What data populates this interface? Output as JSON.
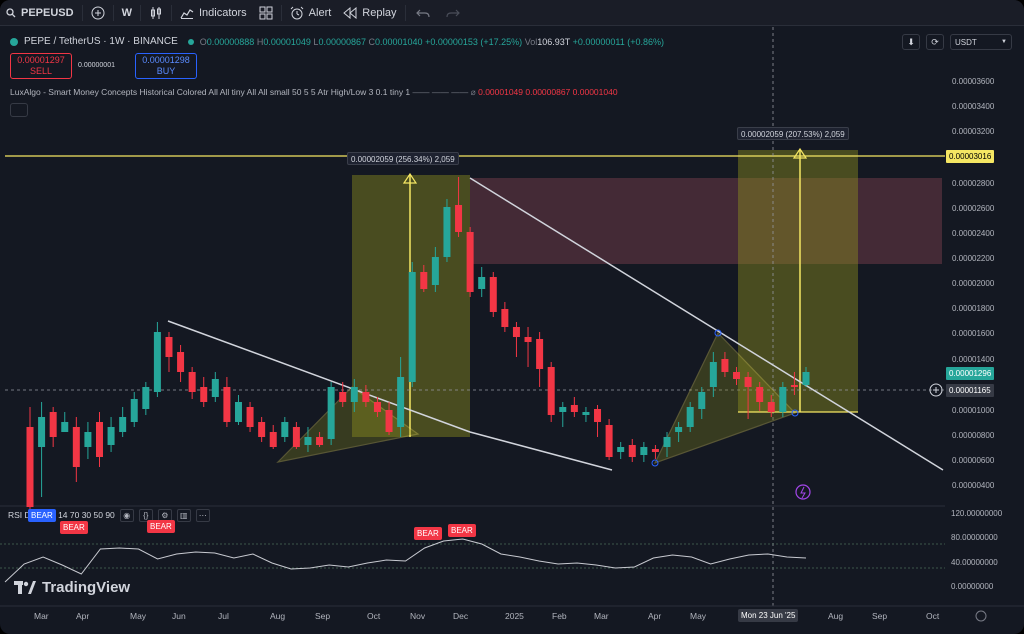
{
  "toolbar": {
    "symbol": "PEPEUSD",
    "interval": "W",
    "indicators_label": "Indicators",
    "alert_label": "Alert",
    "replay_label": "Replay"
  },
  "legend": {
    "title": "PEPE / TetherUS · 1W · BINANCE",
    "open": "0.00000888",
    "high": "0.00001049",
    "low": "0.00000867",
    "close": "0.00001040",
    "change": "+0.00000153 (+17.25%)",
    "vol": "106.93T",
    "vol_change": "+0.00000011 (+0.86%)",
    "sell_price": "0.00001297",
    "sell_label": "SELL",
    "spread": "0.00000001",
    "buy_price": "0.00001298",
    "buy_label": "BUY",
    "indicator": "LuxAlgo - Smart Money Concepts Historical Colored All All tiny All All small 50 5 5 Atr High/Low 3 0.1 tiny 1",
    "indicator_values": "0.00001049  0.00000867  0.00001040",
    "rsi": "RSI Div - Lib 14 70 30 50 90"
  },
  "currency": "USDT",
  "price_axis": [
    "0.00003600",
    "0.00003400",
    "0.00003200",
    "0.00002800",
    "0.00002600",
    "0.00002400",
    "0.00002200",
    "0.00002000",
    "0.00001800",
    "0.00001600",
    "0.00001400",
    "0.00001000",
    "0.00000800",
    "0.00000600",
    "0.00000400"
  ],
  "price_axis_y": [
    55,
    80,
    105,
    157,
    182,
    207,
    232,
    257,
    282,
    307,
    333,
    384,
    409,
    434,
    459
  ],
  "rsi_axis": [
    "120.00000000",
    "80.00000000",
    "40.00000000",
    "0.00000000"
  ],
  "badges": {
    "target": "0.00003016",
    "current": "0.00001296",
    "cursor": "0.00001165"
  },
  "measures": [
    {
      "text": "0.00002059 (256.34%) 2,059"
    },
    {
      "text": "0.00002059 (207.53%) 2,059"
    }
  ],
  "rsi_tags": [
    "BEAR",
    "BEAR",
    "BEAR",
    "BEAR"
  ],
  "time_axis": [
    "Mar",
    "Apr",
    "May",
    "Jun",
    "Jul",
    "Aug",
    "Sep",
    "Oct",
    "Nov",
    "Dec",
    "2025",
    "Feb",
    "Mar",
    "Apr",
    "May",
    "Aug",
    "Sep",
    "Oct"
  ],
  "date_label": "Mon 23 Jun '25",
  "brand": "TradingView",
  "colors": {
    "up": "#26a69a",
    "down": "#f23645",
    "accent": "#f5e663",
    "bg": "#141822"
  },
  "candles": [
    [
      400,
      480,
      380,
      495
    ],
    [
      420,
      390,
      375,
      470
    ],
    [
      385,
      410,
      380,
      420
    ],
    [
      405,
      395,
      385,
      405
    ],
    [
      400,
      440,
      390,
      455
    ],
    [
      420,
      405,
      395,
      432
    ],
    [
      395,
      430,
      385,
      440
    ],
    [
      418,
      400,
      390,
      425
    ],
    [
      405,
      390,
      380,
      410
    ],
    [
      395,
      372,
      365,
      400
    ],
    [
      382,
      360,
      355,
      388
    ],
    [
      365,
      305,
      295,
      370
    ],
    [
      310,
      330,
      305,
      345
    ],
    [
      325,
      345,
      318,
      355
    ],
    [
      345,
      365,
      340,
      372
    ],
    [
      360,
      375,
      350,
      380
    ],
    [
      370,
      352,
      345,
      375
    ],
    [
      360,
      395,
      350,
      400
    ],
    [
      395,
      375,
      368,
      398
    ],
    [
      380,
      400,
      375,
      405
    ],
    [
      395,
      410,
      390,
      415
    ],
    [
      405,
      420,
      398,
      422
    ],
    [
      410,
      395,
      390,
      415
    ],
    [
      400,
      420,
      395,
      422
    ],
    [
      418,
      410,
      400,
      425
    ],
    [
      410,
      418,
      405,
      420
    ],
    [
      412,
      360,
      355,
      418
    ],
    [
      365,
      375,
      355,
      380
    ],
    [
      375,
      360,
      352,
      385
    ],
    [
      365,
      375,
      358,
      380
    ],
    [
      375,
      385,
      370,
      390
    ],
    [
      383,
      405,
      375,
      408
    ],
    [
      400,
      350,
      330,
      410
    ],
    [
      355,
      245,
      235,
      360
    ],
    [
      245,
      262,
      238,
      265
    ],
    [
      258,
      230,
      220,
      265
    ],
    [
      230,
      180,
      172,
      235
    ],
    [
      178,
      205,
      150,
      210
    ],
    [
      205,
      265,
      200,
      270
    ],
    [
      262,
      250,
      240,
      270
    ],
    [
      250,
      285,
      245,
      290
    ],
    [
      282,
      300,
      275,
      305
    ],
    [
      300,
      310,
      295,
      330
    ],
    [
      310,
      315,
      300,
      340
    ],
    [
      312,
      342,
      305,
      360
    ],
    [
      340,
      388,
      335,
      395
    ],
    [
      385,
      380,
      375,
      400
    ],
    [
      378,
      385,
      370,
      390
    ],
    [
      388,
      385,
      380,
      395
    ],
    [
      382,
      395,
      378,
      410
    ],
    [
      398,
      430,
      392,
      433
    ],
    [
      425,
      420,
      415,
      432
    ],
    [
      418,
      430,
      412,
      435
    ],
    [
      428,
      420,
      415,
      435
    ],
    [
      422,
      425,
      418,
      432
    ],
    [
      420,
      410,
      405,
      430
    ],
    [
      405,
      400,
      395,
      415
    ],
    [
      400,
      380,
      375,
      405
    ],
    [
      382,
      365,
      360,
      392
    ],
    [
      360,
      335,
      325,
      370
    ],
    [
      332,
      345,
      325,
      350
    ],
    [
      345,
      352,
      340,
      358
    ],
    [
      350,
      360,
      345,
      392
    ],
    [
      360,
      375,
      355,
      384
    ],
    [
      375,
      385,
      368,
      390
    ],
    [
      385,
      360,
      355,
      390
    ],
    [
      358,
      360,
      345,
      368
    ],
    [
      358,
      345,
      340,
      360
    ]
  ],
  "rsi_line": [
    555,
    537,
    530,
    538,
    547,
    522,
    521,
    522,
    532,
    527,
    525,
    526,
    531,
    527,
    536,
    542,
    541,
    538,
    540,
    536,
    533,
    534,
    521,
    514,
    512,
    517,
    527,
    530,
    534,
    537,
    536,
    538,
    541,
    540,
    531,
    528,
    530,
    537,
    532,
    528,
    527,
    530,
    531
  ]
}
